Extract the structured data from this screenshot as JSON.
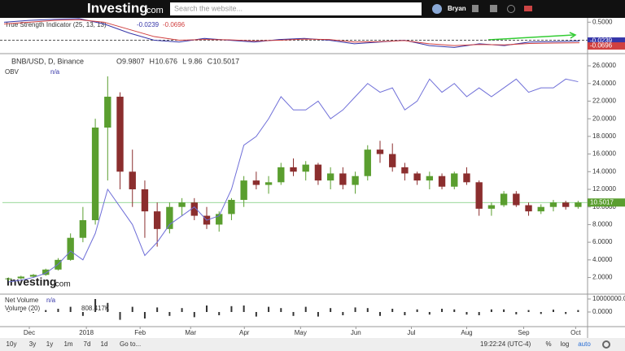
{
  "header": {
    "logo": "Investing",
    "logo_suffix": ".com",
    "search_placeholder": "Search the website...",
    "user": "Bryan"
  },
  "tsi": {
    "title": "True Strength Indicator (25, 13, 13)",
    "ylim": [
      -0.35,
      0.62
    ],
    "yticks": [
      {
        "value": 0.5,
        "label": "0.5000"
      }
    ],
    "series": [
      {
        "color": "#3535a8",
        "values": [
          0.5,
          0.55,
          0.58,
          0.6,
          0.45,
          0.2,
          0.0,
          -0.05,
          0.05,
          0.0,
          -0.05,
          0.02,
          0.05,
          0.0,
          -0.1,
          -0.05,
          0.0,
          -0.15,
          -0.2,
          -0.1,
          -0.15,
          -0.05,
          -0.04,
          -0.0239
        ]
      },
      {
        "color": "#d04040",
        "values": [
          0.45,
          0.5,
          0.55,
          0.57,
          0.5,
          0.3,
          0.1,
          0.0,
          0.02,
          0.01,
          -0.02,
          0.0,
          0.03,
          0.02,
          -0.05,
          -0.04,
          -0.01,
          -0.1,
          -0.15,
          -0.12,
          -0.13,
          -0.09,
          -0.08,
          -0.0696
        ]
      }
    ]
  },
  "chart_data": {
    "type": "candlestick",
    "title": "BNB/USD, D, Binance",
    "ohlc": [
      {
        "label": "O",
        "value": 9.9807
      },
      {
        "label": "H",
        "value": 10.676
      },
      {
        "label": "L",
        "value": 9.86
      },
      {
        "label": "C",
        "value": 10.5017
      }
    ],
    "last_price": 10.5017,
    "up_color": "#5a9e2f",
    "down_color": "#8b2e2e",
    "candles": {
      "open": [
        1.8,
        1.9,
        2.1,
        2.3,
        2.9,
        4.0,
        6.5,
        8.5,
        19.0,
        22.5,
        14.0,
        12.0,
        9.5,
        7.5,
        10.0,
        10.5,
        9.0,
        8.0,
        9.2,
        10.8,
        13.0,
        12.5,
        12.8,
        14.5,
        14.0,
        14.8,
        13.0,
        13.8,
        12.5,
        13.5,
        16.5,
        16.0,
        14.5,
        13.8,
        13.0,
        13.5,
        12.3,
        13.8,
        12.8,
        9.8,
        10.2,
        11.5,
        10.2,
        9.5,
        10.0,
        10.5,
        10.0
      ],
      "high": [
        2.0,
        2.2,
        2.4,
        3.0,
        4.2,
        7.0,
        10.0,
        20.0,
        24.8,
        23.0,
        16.5,
        13.0,
        10.5,
        10.5,
        11.0,
        11.0,
        10.0,
        9.5,
        11.0,
        13.5,
        14.0,
        13.5,
        15.0,
        15.5,
        15.2,
        15.0,
        14.5,
        14.5,
        14.0,
        17.0,
        17.5,
        17.2,
        15.0,
        14.0,
        14.0,
        13.8,
        14.0,
        14.5,
        13.0,
        10.5,
        11.8,
        11.8,
        10.5,
        10.3,
        10.8,
        10.7,
        10.7
      ],
      "low": [
        1.6,
        1.8,
        2.0,
        2.2,
        2.8,
        3.9,
        6.0,
        8.0,
        13.0,
        12.0,
        10.0,
        6.5,
        5.5,
        7.0,
        9.0,
        8.5,
        7.5,
        7.2,
        8.5,
        10.0,
        12.0,
        11.5,
        12.5,
        13.5,
        13.0,
        12.5,
        12.0,
        12.0,
        11.5,
        13.0,
        15.0,
        14.0,
        13.0,
        12.5,
        12.0,
        12.0,
        12.0,
        12.5,
        9.0,
        9.0,
        10.0,
        10.0,
        9.0,
        9.2,
        9.5,
        9.7,
        9.8
      ],
      "close": [
        1.9,
        2.1,
        2.3,
        2.9,
        4.0,
        6.5,
        8.5,
        19.0,
        22.5,
        14.0,
        12.0,
        9.5,
        7.5,
        10.0,
        10.5,
        9.0,
        8.0,
        9.2,
        10.8,
        13.0,
        12.5,
        12.8,
        14.5,
        14.0,
        14.8,
        13.0,
        13.8,
        12.5,
        13.5,
        16.5,
        16.0,
        14.5,
        13.8,
        13.0,
        13.5,
        12.3,
        13.8,
        12.8,
        9.8,
        10.2,
        11.5,
        10.2,
        9.5,
        10.0,
        10.5,
        10.0,
        10.5
      ]
    },
    "series": [
      {
        "name": "OBV",
        "color": "#6f6fd8",
        "value_text": "n/a",
        "values": [
          1.5,
          1.7,
          2,
          2.5,
          3.5,
          5,
          4,
          7,
          12,
          10,
          8,
          4.5,
          6,
          8,
          9,
          10,
          8.5,
          9,
          12,
          17,
          18,
          20,
          22.5,
          21,
          21,
          22,
          20,
          21,
          22.5,
          24,
          23,
          23.5,
          21,
          22,
          24.5,
          23,
          24,
          22.5,
          23.5,
          22.5,
          23.5,
          24.5,
          23,
          23.5,
          23.5,
          24.5,
          24.2
        ]
      }
    ],
    "xlim": [
      0,
      47
    ],
    "xticks": [
      {
        "value": 2.17,
        "label": "Dec"
      },
      {
        "value": 6.78,
        "label": "2018"
      },
      {
        "value": 11.12,
        "label": "Feb"
      },
      {
        "value": 15.2,
        "label": "Mar"
      },
      {
        "value": 19.54,
        "label": "Apr"
      },
      {
        "value": 24.08,
        "label": "May"
      },
      {
        "value": 28.55,
        "label": "Jun"
      },
      {
        "value": 33.03,
        "label": "Jul"
      },
      {
        "value": 37.5,
        "label": "Aug"
      },
      {
        "value": 42.1,
        "label": "Sep"
      },
      {
        "value": 46.3,
        "label": "Oct"
      }
    ],
    "ylim": [
      0.3,
      27.2
    ],
    "yticks": [
      {
        "value": 2,
        "label": "2.0000"
      },
      {
        "value": 4,
        "label": "4.0000"
      },
      {
        "value": 6,
        "label": "6.0000"
      },
      {
        "value": 8,
        "label": "8.0000"
      },
      {
        "value": 10,
        "label": "10.0000"
      },
      {
        "value": 12,
        "label": "12.0000"
      },
      {
        "value": 14,
        "label": "14.0000"
      },
      {
        "value": 16,
        "label": "16.0000"
      },
      {
        "value": 18,
        "label": "18.0000"
      },
      {
        "value": 20,
        "label": "20.0000"
      },
      {
        "value": 22,
        "label": "22.0000"
      },
      {
        "value": 24,
        "label": "24.0000"
      },
      {
        "value": 26,
        "label": "26.0000"
      }
    ]
  },
  "volume": {
    "title": "Net Volume",
    "title_value": "n/a",
    "sub_title": "Volume (20)",
    "sub_value": "808.417K",
    "color": "#333333",
    "ylim": [
      -10000000,
      12500000
    ],
    "yticks": [
      {
        "value": 10000000,
        "label": "10000000.0"
      },
      {
        "value": 0,
        "label": "0.0000"
      }
    ],
    "values": [
      500000,
      800000,
      -600000,
      1500000,
      2500000,
      4000000,
      -3000000,
      10000000,
      7000000,
      -6000000,
      4000000,
      -5000000,
      3500000,
      -3000000,
      3000000,
      -4000000,
      5000000,
      -2500000,
      4500000,
      5000000,
      -3500000,
      4000000,
      3000000,
      -3000000,
      4000000,
      -3500000,
      3000000,
      -2500000,
      3500000,
      3000000,
      -3000000,
      2500000,
      -2500000,
      2000000,
      -2000000,
      2500000,
      2000000,
      -2000000,
      -2500000,
      2000000,
      2000000,
      -1800000,
      1500000,
      -1500000,
      1800000,
      -1500000,
      1500000
    ]
  },
  "footer": {
    "ranges": [
      "10y",
      "3y",
      "1y",
      "1m",
      "7d",
      "1d"
    ],
    "goto": "Go to...",
    "time": "19:22:24 (UTC-4)",
    "options": [
      "%",
      "log",
      "auto"
    ]
  }
}
